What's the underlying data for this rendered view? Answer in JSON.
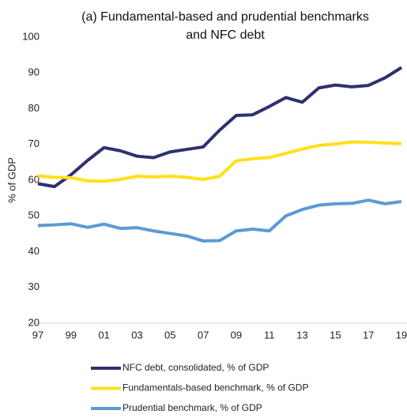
{
  "chart_data": {
    "type": "line",
    "title": [
      "(a) Fundamental-based and prudential benchmarks",
      "and NFC debt"
    ],
    "y_label": "% of GDP",
    "categories": [
      "97",
      null,
      "99",
      null,
      "01",
      null,
      "03",
      null,
      "05",
      null,
      "07",
      null,
      "09",
      null,
      "11",
      null,
      "13",
      null,
      "15",
      null,
      "17",
      null,
      "19"
    ],
    "series": [
      {
        "name": "NFC debt, consolidated,  % of GDP",
        "color": "#2e3170",
        "values": [
          59,
          58.2,
          61.5,
          65.5,
          69.1,
          68.2,
          66.7,
          66.3,
          67.9,
          68.6,
          69.3,
          74,
          78.1,
          78.3,
          80.6,
          83.1,
          81.8,
          85.8,
          86.6,
          86.1,
          86.5,
          88.6,
          91.5
        ]
      },
      {
        "name": "Fundamentals-based benchmark, % of GDP",
        "color": "#ffe01a",
        "values": [
          61.2,
          60.8,
          60.7,
          59.8,
          59.7,
          60.2,
          61.1,
          60.9,
          61.1,
          60.8,
          60.2,
          61.1,
          65.4,
          66,
          66.3,
          67.5,
          68.7,
          69.7,
          70.1,
          70.7,
          70.6,
          70.4,
          70.2
        ]
      },
      {
        "name": "Prudential benchmark, % of GDP",
        "color": "#5b9bd5",
        "values": [
          47.3,
          47.5,
          47.8,
          46.8,
          47.7,
          46.5,
          46.7,
          45.8,
          45.1,
          44.4,
          43,
          43.1,
          45.8,
          46.3,
          45.8,
          50,
          51.8,
          53,
          53.4,
          53.5,
          54.4,
          53.4,
          54
        ]
      }
    ],
    "ylim": [
      20,
      100
    ],
    "yticks": [
      20,
      30,
      40,
      50,
      60,
      70,
      80,
      90,
      100
    ],
    "grid": false,
    "legend": "bottom"
  }
}
